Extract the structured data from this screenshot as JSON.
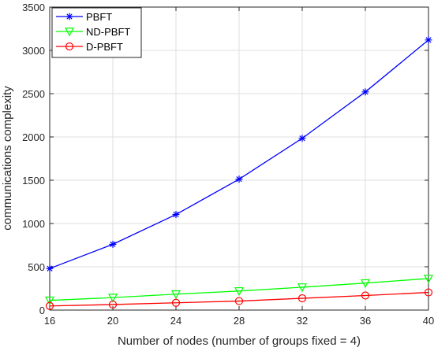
{
  "chart_data": {
    "type": "line",
    "title": "",
    "xlabel": "Number of nodes (number of groups fixed = 4)",
    "ylabel": "communications complexity",
    "x": [
      16,
      20,
      24,
      28,
      32,
      36,
      40
    ],
    "xlim": [
      16,
      40
    ],
    "ylim": [
      0,
      3500
    ],
    "xticks": [
      "16",
      "20",
      "24",
      "28",
      "32",
      "36",
      "40"
    ],
    "yticks": [
      "0",
      "500",
      "1000",
      "1500",
      "2000",
      "2500",
      "3000",
      "3500"
    ],
    "grid": true,
    "legend_position": "top-left",
    "series": [
      {
        "name": "PBFT",
        "color": "#0000ff",
        "marker": "asterisk",
        "values": [
          480,
          760,
          1104,
          1512,
          1984,
          2520,
          3120
        ]
      },
      {
        "name": "ND-PBFT",
        "color": "#00ff00",
        "marker": "triangle-down",
        "values": [
          112,
          144,
          184,
          220,
          264,
          312,
          364
        ]
      },
      {
        "name": "D-PBFT",
        "color": "#ff0000",
        "marker": "circle",
        "values": [
          48,
          64,
          84,
          104,
          136,
          168,
          204
        ]
      }
    ]
  }
}
